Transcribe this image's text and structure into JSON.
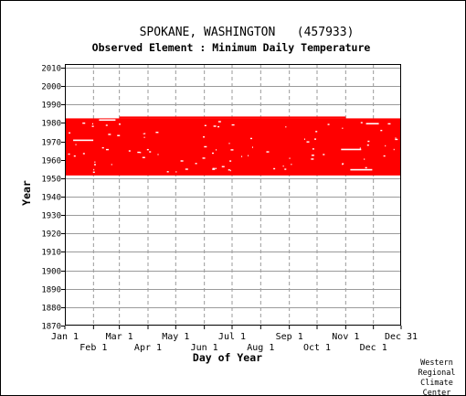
{
  "station": {
    "name": "SPOKANE, WASHINGTON",
    "id": "(457933)"
  },
  "observed_element": "Observed Element : Minimum Daily Temperature",
  "credit": [
    "Western",
    "Regional",
    "Climate",
    "Center"
  ],
  "colors": {
    "data": "#ff0000",
    "grid": "#9a9a9a",
    "axis": "#000000"
  },
  "chart_data": {
    "type": "heatmap",
    "title": "SPOKANE, WASHINGTON   (457933)",
    "subtitle": "Observed Element : Minimum Daily Temperature",
    "xlabel": "Day of Year",
    "ylabel": "Year",
    "xlim": [
      1,
      365
    ],
    "ylim": [
      1870,
      2012
    ],
    "x_ticks_top": [
      "Jan 1",
      "Mar 1",
      "May 1",
      "Jul 1",
      "Sep 1",
      "Nov 1",
      "Dec 31"
    ],
    "x_ticks_bottom": [
      "Feb 1",
      "Apr 1",
      "Jun 1",
      "Aug 1",
      "Oct 1",
      "Dec 1"
    ],
    "y_ticks": [
      1870,
      1880,
      1890,
      1900,
      1910,
      1920,
      1930,
      1940,
      1950,
      1960,
      1970,
      1980,
      1990,
      2000,
      2010
    ],
    "grid": true,
    "record_start_year": 1953,
    "record_end_year": 1982,
    "data_present_color": "#ff0000",
    "note": "Red cells mark days with data; white gaps are missing days."
  }
}
